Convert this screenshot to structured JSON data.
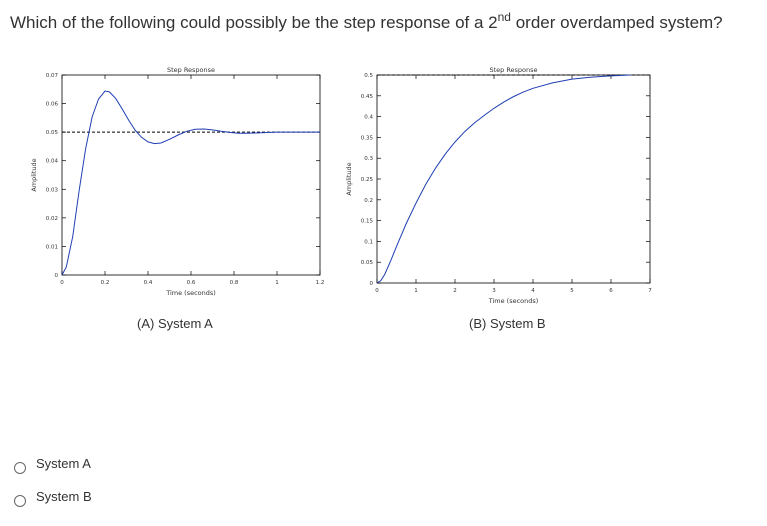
{
  "question": {
    "text_before": "Which of the following could possibly be the step response of a 2",
    "superscript": "nd",
    "text_after": " order overdamped system?"
  },
  "captions": {
    "a": "(A) System A",
    "b": "(B) System B"
  },
  "options": [
    {
      "label": "System A"
    },
    {
      "label": "System B"
    }
  ],
  "colors": {
    "curve": "#1f3fb4",
    "final_value_line": "#000000"
  },
  "chart_data": [
    {
      "type": "line",
      "title": "Step Response",
      "xlabel": "Time (seconds)",
      "ylabel": "Amplitude",
      "xlim": [
        0,
        1.2
      ],
      "ylim": [
        0,
        0.07
      ],
      "xticks": [
        "0",
        "0.2",
        "0.4",
        "0.6",
        "0.8",
        "1",
        "1.2"
      ],
      "yticks": [
        "0",
        "0.01",
        "0.02",
        "0.03",
        "0.04",
        "0.05",
        "0.06",
        "0.07"
      ],
      "final_value": 0.05,
      "series": [
        {
          "x": [
            0,
            0.02,
            0.05,
            0.08,
            0.11,
            0.14,
            0.17,
            0.2,
            0.22,
            0.25,
            0.28,
            0.31,
            0.34,
            0.37,
            0.4,
            0.43,
            0.46,
            0.5,
            0.54,
            0.58,
            0.62,
            0.66,
            0.7,
            0.74,
            0.78,
            0.82,
            0.86,
            0.9,
            1.0,
            1.1,
            1.2
          ],
          "y": [
            0,
            0.0028,
            0.0135,
            0.0297,
            0.0442,
            0.0553,
            0.0616,
            0.0644,
            0.0641,
            0.0618,
            0.0581,
            0.0542,
            0.0507,
            0.0482,
            0.0466,
            0.046,
            0.0462,
            0.0475,
            0.049,
            0.0503,
            0.051,
            0.0511,
            0.0508,
            0.0503,
            0.0499,
            0.0496,
            0.0496,
            0.0497,
            0.05,
            0.05,
            0.05
          ]
        }
      ]
    },
    {
      "type": "line",
      "title": "Step Response",
      "xlabel": "Time (seconds)",
      "ylabel": "Amplitude",
      "xlim": [
        0,
        7
      ],
      "ylim": [
        0,
        0.5
      ],
      "xticks": [
        "0",
        "1",
        "2",
        "3",
        "4",
        "5",
        "6",
        "7"
      ],
      "yticks": [
        "0",
        "0.05",
        "0.1",
        "0.15",
        "0.2",
        "0.25",
        "0.3",
        "0.35",
        "0.4",
        "0.45",
        "0.5"
      ],
      "final_value": 0.5,
      "series": [
        {
          "x": [
            0,
            0.1,
            0.2,
            0.35,
            0.5,
            0.75,
            1.0,
            1.25,
            1.5,
            1.75,
            2.0,
            2.25,
            2.5,
            2.75,
            3.0,
            3.25,
            3.5,
            3.75,
            4.0,
            4.5,
            5.0,
            5.5,
            6.0,
            6.5
          ],
          "y": [
            0,
            0.006,
            0.021,
            0.053,
            0.088,
            0.143,
            0.192,
            0.237,
            0.276,
            0.31,
            0.339,
            0.364,
            0.385,
            0.403,
            0.42,
            0.435,
            0.448,
            0.459,
            0.468,
            0.481,
            0.49,
            0.495,
            0.498,
            0.5
          ]
        }
      ]
    }
  ]
}
